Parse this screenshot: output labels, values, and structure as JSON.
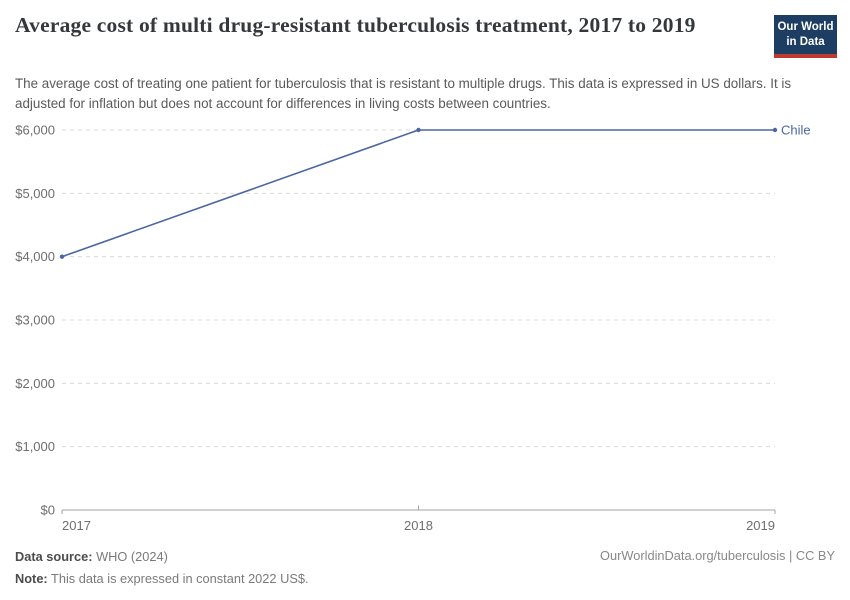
{
  "chart_data": {
    "type": "line",
    "title": "Average cost of multi drug-resistant tuberculosis treatment, 2017 to 2019",
    "subtitle": "The average cost of treating one patient for tuberculosis that is resistant to multiple drugs. This data is expressed in US dollars. It is adjusted for inflation but does not account for differences in living costs between countries.",
    "x": [
      2017,
      2018,
      2019
    ],
    "x_tick_labels": [
      "2017",
      "2018",
      "2019"
    ],
    "series": [
      {
        "name": "Chile",
        "color": "#4b66a2",
        "values": [
          4000,
          6000,
          6000
        ]
      }
    ],
    "xlim": [
      2017,
      2019
    ],
    "ylim": [
      0,
      6000
    ],
    "y_ticks": [
      0,
      1000,
      2000,
      3000,
      4000,
      5000,
      6000
    ],
    "y_tick_labels": [
      "$0",
      "$1,000",
      "$2,000",
      "$3,000",
      "$4,000",
      "$5,000",
      "$6,000"
    ],
    "grid": "horizontal-dashed",
    "legend_position": "end-of-line",
    "point_markers": true,
    "colors": {
      "grid": "#d9d9d9",
      "axis": "#a3a3a3",
      "tick_text": "#6e6e6e"
    }
  },
  "logo": {
    "line1": "Our World",
    "line2": "in Data",
    "bg_color": "#1d3d63",
    "accent_color": "#be392f"
  },
  "footer": {
    "data_source_label": "Data source:",
    "data_source_value": "WHO (2024)",
    "note_label": "Note:",
    "note_value": "This data is expressed in constant 2022 US$.",
    "link_text": "OurWorldinData.org/tuberculosis | CC BY"
  }
}
